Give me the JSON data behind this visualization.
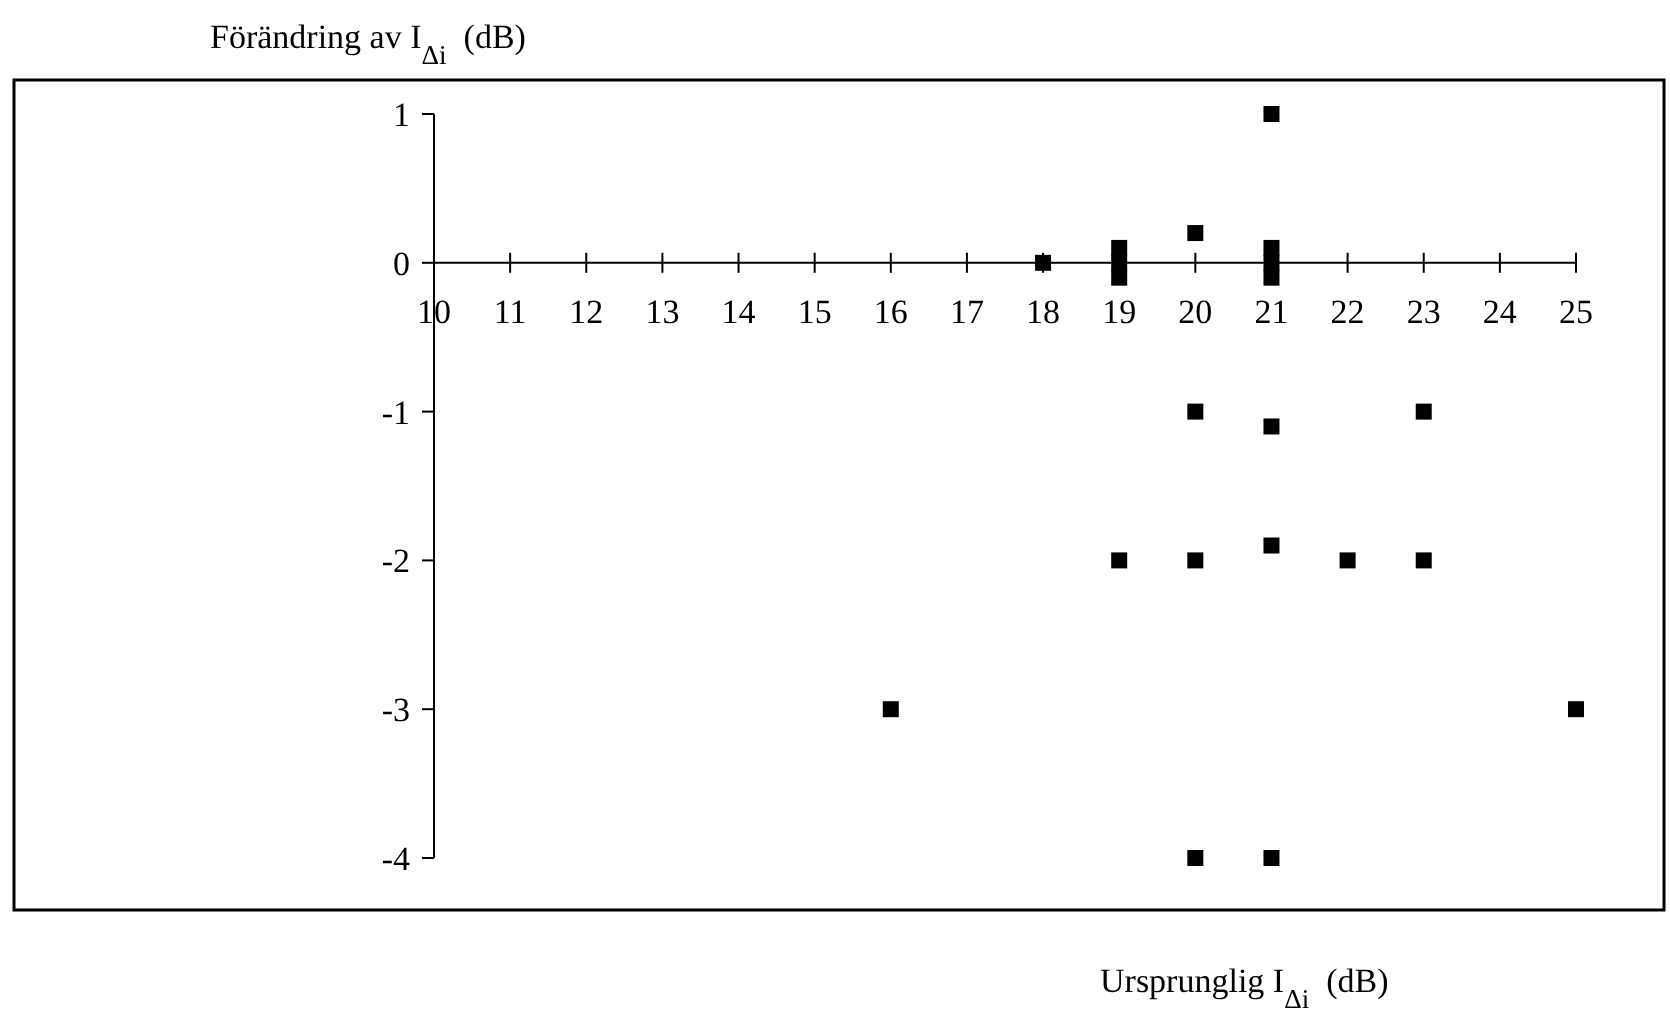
{
  "chart_data": {
    "type": "scatter",
    "ylabel": "Förändring av I$_{Δi}$  (dB)",
    "xlabel": "Ursprunglig I$_{Δi}$  (dB)",
    "xlim": [
      10,
      25
    ],
    "xticks": [
      10,
      11,
      12,
      13,
      14,
      15,
      16,
      17,
      18,
      19,
      20,
      21,
      22,
      23,
      24,
      25
    ],
    "ylim": [
      -4,
      1
    ],
    "yticks": [
      -4,
      -3,
      -2,
      -1,
      0,
      1
    ],
    "marker": "square",
    "grid": false,
    "series": [
      {
        "color": "#000000",
        "x": [
          18,
          19,
          19,
          19,
          20,
          21,
          21,
          21,
          21,
          20,
          21,
          23,
          19,
          20,
          21,
          22,
          23,
          16,
          25,
          20,
          21
        ],
        "values": [
          0,
          0.1,
          0,
          -0.1,
          0.2,
          1,
          0.1,
          0,
          -0.1,
          -1,
          -1.1,
          -1,
          -2,
          -2,
          -1.9,
          -2,
          -2,
          -3,
          -3,
          -4,
          -4
        ]
      }
    ]
  }
}
